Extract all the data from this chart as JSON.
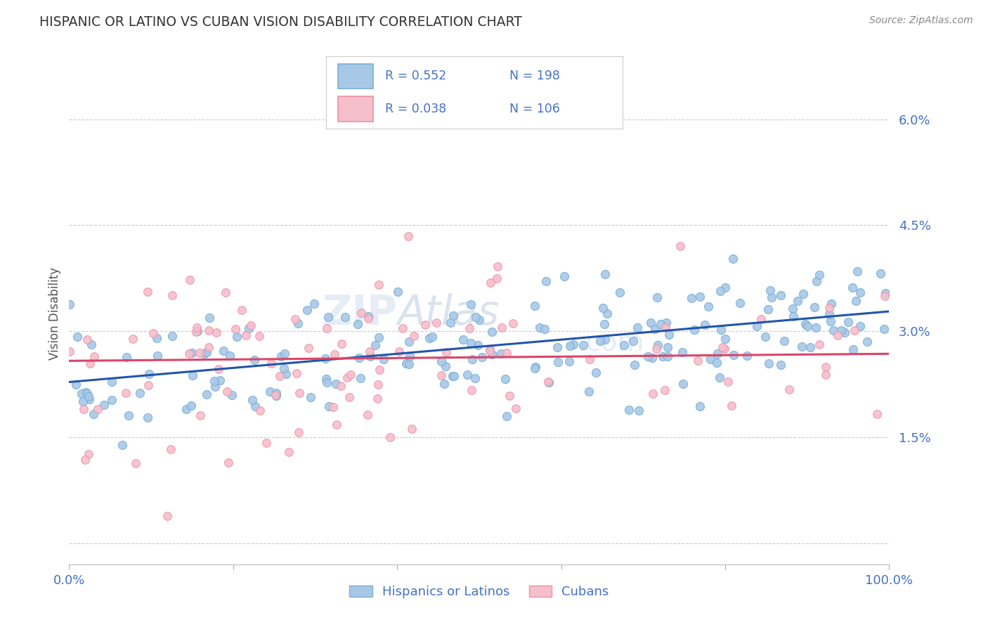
{
  "title": "HISPANIC OR LATINO VS CUBAN VISION DISABILITY CORRELATION CHART",
  "source_text": "Source: ZipAtlas.com",
  "ylabel": "Vision Disability",
  "xlim": [
    0.0,
    100.0
  ],
  "ylim": [
    -0.3,
    6.8
  ],
  "yticks": [
    0.0,
    1.5,
    3.0,
    4.5,
    6.0
  ],
  "legend_R1": "R = 0.552",
  "legend_N1": "N = 198",
  "legend_R2": "R = 0.038",
  "legend_N2": "N = 106",
  "blue_scatter_color": "#a8c8e8",
  "blue_edge_color": "#7aafd4",
  "pink_scatter_color": "#f5bfcc",
  "pink_edge_color": "#f090a8",
  "line_blue": "#2255aa",
  "line_pink": "#dd4466",
  "axis_label_color": "#4472C4",
  "title_color": "#333333",
  "source_color": "#888888",
  "grid_color": "#cccccc",
  "background_color": "#ffffff",
  "blue_line_x0": 0,
  "blue_line_y0": 2.28,
  "blue_line_x1": 100,
  "blue_line_y1": 3.28,
  "pink_line_x0": 0,
  "pink_line_y0": 2.58,
  "pink_line_x1": 100,
  "pink_line_y1": 2.68,
  "blue_N": 198,
  "pink_N": 106
}
